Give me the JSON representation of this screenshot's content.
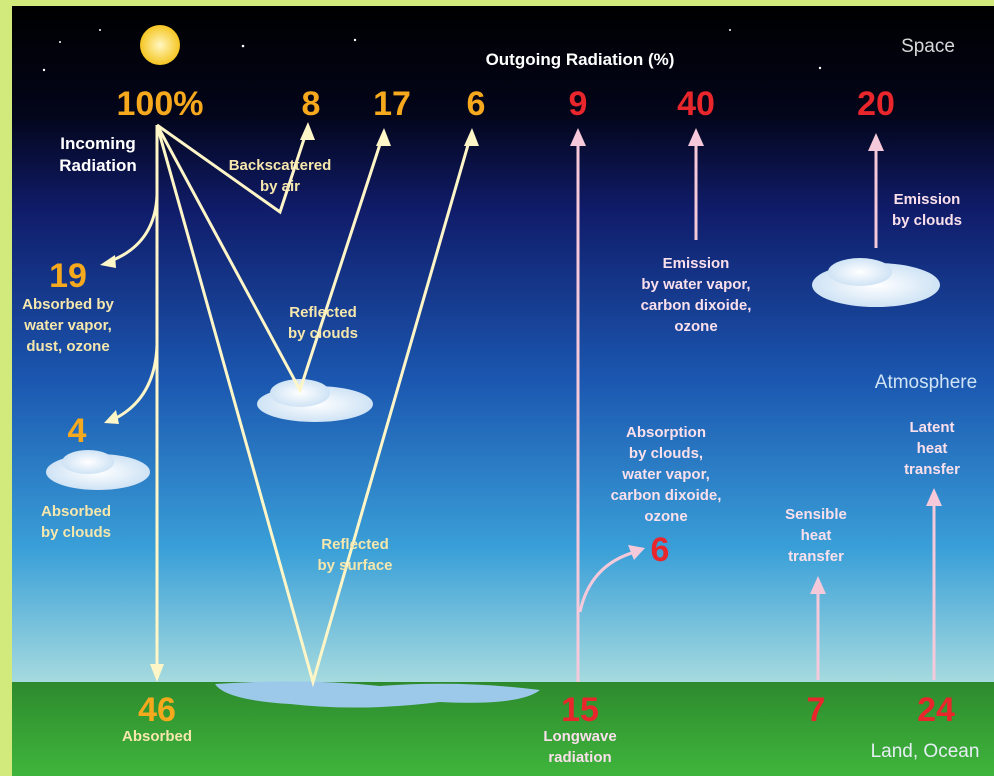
{
  "header": {
    "title": "Outgoing Radiation (%)",
    "space": "Space"
  },
  "incoming": {
    "value": "100%",
    "label": [
      "Incoming",
      "Radiation"
    ]
  },
  "shortwave": [
    {
      "value": "8",
      "label": [
        "Backscattered",
        "by air"
      ]
    },
    {
      "value": "17",
      "label": [
        "Reflected",
        "by clouds"
      ]
    },
    {
      "value": "6",
      "label": [
        "Reflected",
        "by surface"
      ]
    },
    {
      "value": "19",
      "label": [
        "Absorbed by",
        "water vapor,",
        "dust, ozone"
      ]
    },
    {
      "value": "4",
      "label": [
        "Absorbed",
        "by clouds"
      ]
    },
    {
      "value": "46",
      "label": [
        "Absorbed"
      ]
    }
  ],
  "longwave": [
    {
      "value": "9"
    },
    {
      "value": "40",
      "label": [
        "Emission",
        "by water vapor,",
        "carbon dixoide,",
        "ozone"
      ]
    },
    {
      "value": "20",
      "label": [
        "Emission",
        "by clouds"
      ]
    },
    {
      "value": "6",
      "label": [
        "Absorption",
        "by clouds,",
        "water vapor,",
        "carbon dixoide,",
        "ozone"
      ]
    },
    {
      "value": "15",
      "label": [
        "Longwave",
        "radiation"
      ]
    },
    {
      "value": "7",
      "label": [
        "Sensible",
        "heat",
        "transfer"
      ]
    },
    {
      "value": "24",
      "label": [
        "Latent",
        "heat",
        "transfer"
      ]
    }
  ],
  "regions": {
    "atmosphere": "Atmosphere",
    "surface": "Land, Ocean"
  }
}
